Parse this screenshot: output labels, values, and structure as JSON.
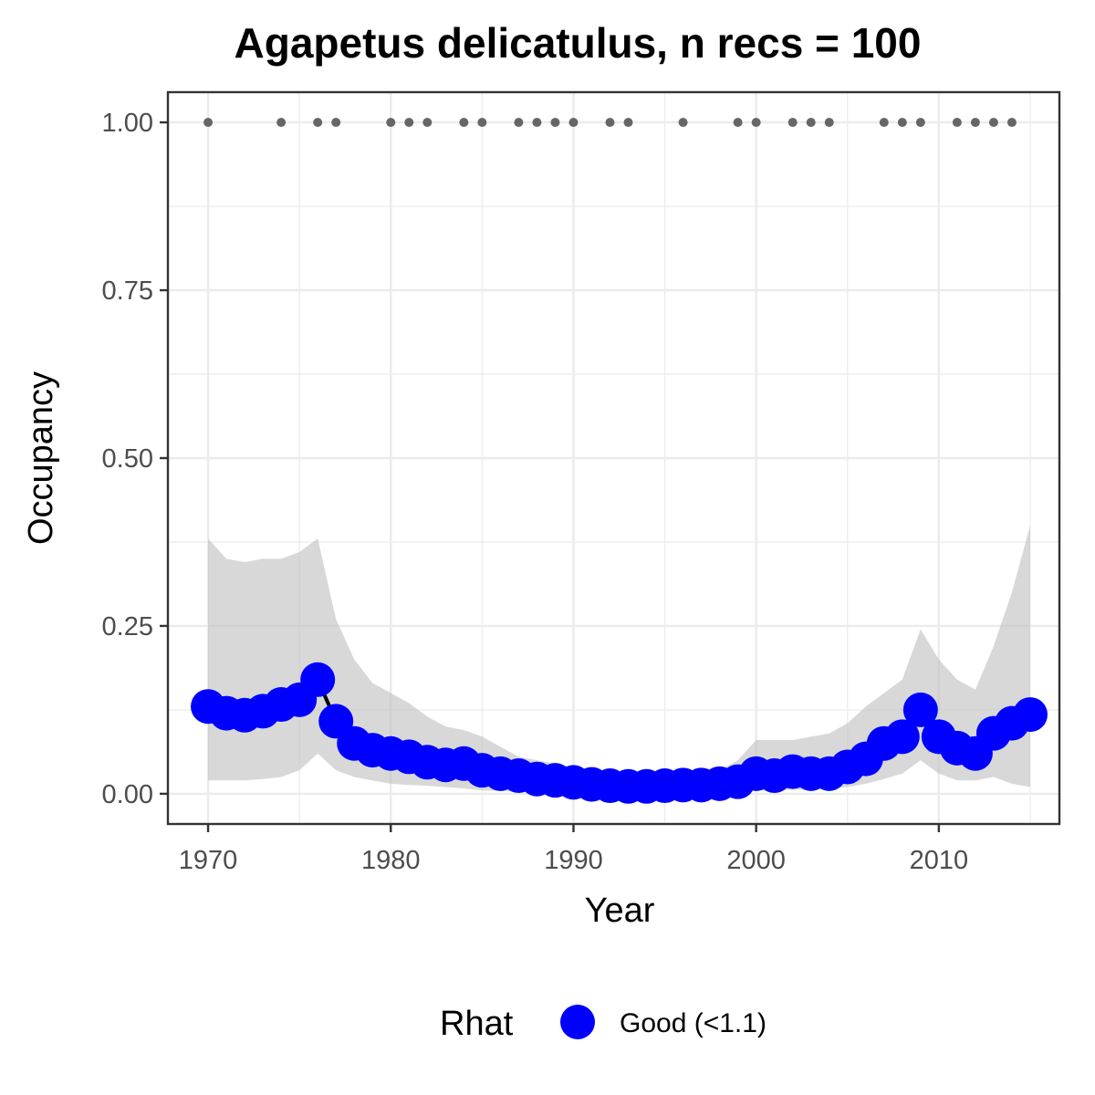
{
  "chart_data": {
    "type": "line",
    "title": "Agapetus delicatulus, n recs = 100",
    "xlabel": "Year",
    "ylabel": "Occupancy",
    "xlim": [
      1967.8,
      2016.6
    ],
    "ylim": [
      -0.045,
      1.045
    ],
    "x_ticks": [
      1970,
      1980,
      1990,
      2000,
      2010
    ],
    "x_tick_labels": [
      "1970",
      "1980",
      "1990",
      "2000",
      "2010"
    ],
    "y_ticks": [
      0,
      0.25,
      0.5,
      0.75,
      1.0
    ],
    "y_tick_labels": [
      "0.00",
      "0.25",
      "0.50",
      "0.75",
      "1.00"
    ],
    "grid": true,
    "colors": {
      "point": "#0000ff",
      "line": "#000000",
      "ribbon": "#bebebe",
      "records": "#666666",
      "grid": "#ebebeb",
      "panel_border": "#333333"
    },
    "years": [
      1970,
      1971,
      1972,
      1973,
      1974,
      1975,
      1976,
      1977,
      1978,
      1979,
      1980,
      1981,
      1982,
      1983,
      1984,
      1985,
      1986,
      1987,
      1988,
      1989,
      1990,
      1991,
      1992,
      1993,
      1994,
      1995,
      1996,
      1997,
      1998,
      1999,
      2000,
      2001,
      2002,
      2003,
      2004,
      2005,
      2006,
      2007,
      2008,
      2009,
      2010,
      2011,
      2012,
      2013,
      2014,
      2015
    ],
    "series": [
      {
        "name": "Good (<1.1)",
        "values": [
          0.13,
          0.12,
          0.117,
          0.123,
          0.133,
          0.14,
          0.17,
          0.108,
          0.075,
          0.065,
          0.06,
          0.055,
          0.047,
          0.043,
          0.045,
          0.035,
          0.03,
          0.027,
          0.022,
          0.02,
          0.017,
          0.014,
          0.012,
          0.011,
          0.011,
          0.012,
          0.013,
          0.013,
          0.015,
          0.018,
          0.03,
          0.027,
          0.033,
          0.03,
          0.03,
          0.04,
          0.052,
          0.075,
          0.085,
          0.125,
          0.085,
          0.068,
          0.06,
          0.09,
          0.105,
          0.118
        ]
      }
    ],
    "ribbon": {
      "upper": [
        0.38,
        0.35,
        0.345,
        0.35,
        0.35,
        0.36,
        0.38,
        0.26,
        0.2,
        0.165,
        0.15,
        0.135,
        0.115,
        0.1,
        0.095,
        0.085,
        0.07,
        0.055,
        0.05,
        0.045,
        0.04,
        0.035,
        0.03,
        0.03,
        0.03,
        0.03,
        0.03,
        0.03,
        0.035,
        0.05,
        0.08,
        0.08,
        0.08,
        0.085,
        0.09,
        0.105,
        0.13,
        0.15,
        0.17,
        0.245,
        0.2,
        0.17,
        0.155,
        0.22,
        0.3,
        0.4
      ],
      "lower": [
        0.02,
        0.02,
        0.02,
        0.022,
        0.025,
        0.035,
        0.06,
        0.035,
        0.025,
        0.02,
        0.015,
        0.013,
        0.012,
        0.01,
        0.008,
        0.005,
        0.004,
        0.003,
        0.002,
        0.002,
        0.001,
        0.001,
        0.001,
        0.001,
        0.001,
        0.001,
        0.001,
        0.001,
        0.001,
        0.002,
        0.005,
        0.005,
        0.006,
        0.006,
        0.007,
        0.01,
        0.015,
        0.022,
        0.03,
        0.05,
        0.03,
        0.02,
        0.02,
        0.025,
        0.015,
        0.01
      ]
    },
    "record_years": [
      1970,
      1974,
      1976,
      1977,
      1980,
      1981,
      1982,
      1984,
      1985,
      1987,
      1988,
      1989,
      1990,
      1992,
      1993,
      1996,
      1999,
      2000,
      2002,
      2003,
      2004,
      2007,
      2008,
      2009,
      2011,
      2012,
      2013,
      2014
    ],
    "record_value": 1.0,
    "legend": {
      "title": "Rhat",
      "placement": "bottom",
      "entries": [
        {
          "label": "Good (<1.1)",
          "color": "#0000ff"
        }
      ]
    }
  }
}
